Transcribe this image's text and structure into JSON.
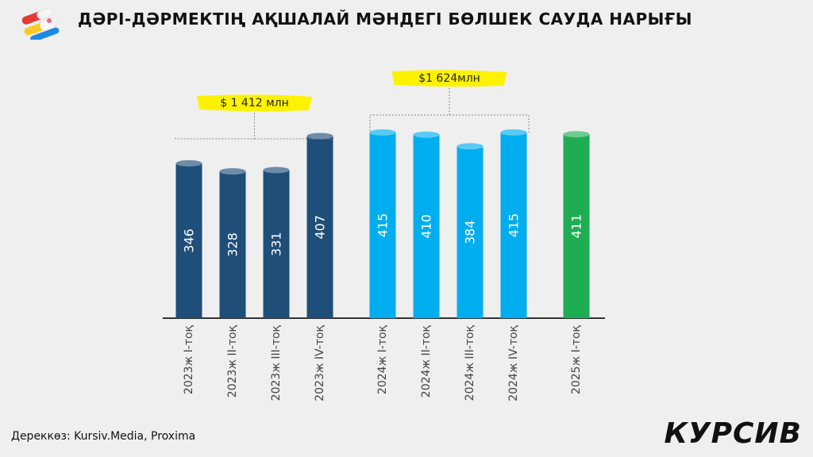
{
  "header": {
    "title": "ДӘРІ-ДӘРМЕКТІҢ АҚШАЛАЙ МӘНДЕГІ БӨЛШЕК САУДА НАРЫҒЫ",
    "logo_icon": "pills-icon"
  },
  "footer": {
    "source": "Дереккөз: Kursiv.Media, Proxima",
    "brand": "КУРСИВ"
  },
  "colors": {
    "y2023": "#1f4e79",
    "y2024": "#00aeef",
    "y2025": "#1fad54",
    "highlight": "#fff200"
  },
  "chart_data": {
    "type": "bar",
    "title": "ДӘРІ-ДӘРМЕКТІҢ АҚШАЛАЙ МӘНДЕГІ БӨЛШЕК САУДА НАРЫҒЫ",
    "xlabel": "",
    "ylabel": "",
    "categories": [
      "2023ж  I-тоқ",
      "2023ж  II-тоқ",
      "2023ж  III-тоқ",
      "2023ж  IV-тоқ",
      "2024ж  I-тоқ",
      "2024ж  II-тоқ",
      "2024ж  III-тоқ",
      "2024ж  IV-тоқ",
      "2025ж  I-тоқ"
    ],
    "values": [
      346,
      328,
      331,
      407,
      415,
      410,
      384,
      415,
      411
    ],
    "ylim": [
      0,
      450
    ],
    "grid": false,
    "annotations": [
      {
        "text": "$ 1 412 млн",
        "from": 0,
        "to": 3
      },
      {
        "text": "$1 624млн",
        "from": 4,
        "to": 7
      }
    ]
  }
}
